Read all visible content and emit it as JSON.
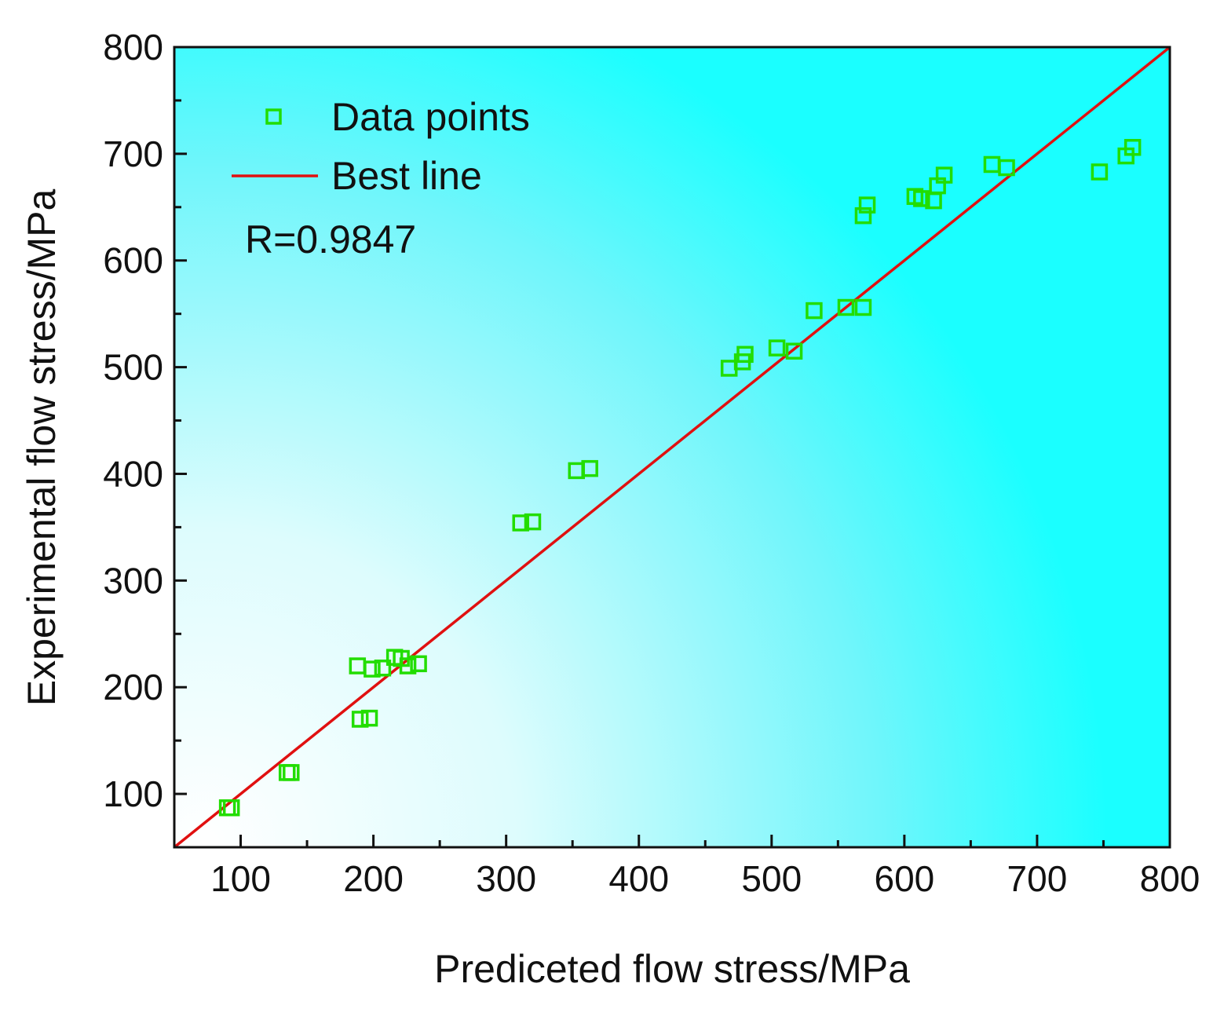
{
  "chart_data": {
    "type": "scatter",
    "title": "",
    "xlabel": "Prediceted flow stress/MPa",
    "ylabel": "Experimental flow stress/MPa",
    "xlim": [
      50,
      800
    ],
    "ylim": [
      50,
      800
    ],
    "xticks": [
      "100",
      "200",
      "300",
      "400",
      "500",
      "600",
      "700",
      "800"
    ],
    "yticks": [
      "100",
      "200",
      "300",
      "400",
      "500",
      "600",
      "700",
      "800"
    ],
    "grid": false,
    "legend_position": "top-left",
    "series": [
      {
        "name": "Data points",
        "marker": "open-square",
        "color": "#22dd00",
        "points": [
          {
            "x": 90,
            "y": 87
          },
          {
            "x": 93,
            "y": 87
          },
          {
            "x": 135,
            "y": 120
          },
          {
            "x": 138,
            "y": 120
          },
          {
            "x": 188,
            "y": 220
          },
          {
            "x": 190,
            "y": 170
          },
          {
            "x": 197,
            "y": 171
          },
          {
            "x": 199,
            "y": 217
          },
          {
            "x": 207,
            "y": 218
          },
          {
            "x": 216,
            "y": 228
          },
          {
            "x": 221,
            "y": 227
          },
          {
            "x": 226,
            "y": 220
          },
          {
            "x": 234,
            "y": 222
          },
          {
            "x": 311,
            "y": 354
          },
          {
            "x": 320,
            "y": 355
          },
          {
            "x": 353,
            "y": 403
          },
          {
            "x": 363,
            "y": 405
          },
          {
            "x": 468,
            "y": 499
          },
          {
            "x": 478,
            "y": 505
          },
          {
            "x": 480,
            "y": 512
          },
          {
            "x": 504,
            "y": 518
          },
          {
            "x": 517,
            "y": 515
          },
          {
            "x": 532,
            "y": 553
          },
          {
            "x": 556,
            "y": 556
          },
          {
            "x": 569,
            "y": 556
          },
          {
            "x": 569,
            "y": 642
          },
          {
            "x": 572,
            "y": 652
          },
          {
            "x": 608,
            "y": 660
          },
          {
            "x": 613,
            "y": 658
          },
          {
            "x": 622,
            "y": 656
          },
          {
            "x": 625,
            "y": 670
          },
          {
            "x": 630,
            "y": 680
          },
          {
            "x": 666,
            "y": 690
          },
          {
            "x": 677,
            "y": 687
          },
          {
            "x": 747,
            "y": 683
          },
          {
            "x": 767,
            "y": 698
          },
          {
            "x": 772,
            "y": 706
          }
        ]
      },
      {
        "name": "Best line",
        "type": "line",
        "color": "#e01010",
        "x": [
          50,
          800
        ],
        "y": [
          50,
          800
        ]
      }
    ],
    "annotations": [
      "R=0.9847"
    ]
  },
  "colors": {
    "gradient_edge": "#1affff",
    "gradient_center": "#ffffff",
    "marker": "#22dd00",
    "best_line": "#e01010",
    "axis": "#111111"
  }
}
